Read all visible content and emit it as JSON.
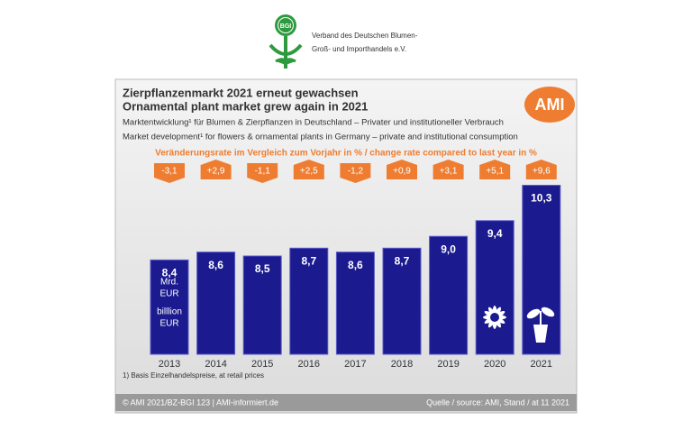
{
  "logo": {
    "badge": "BGI",
    "org_line1": "Verband des Deutschen Blumen-",
    "org_line2": "Groß- und Importhandels e.V."
  },
  "chart_data": {
    "type": "bar",
    "title": "Zierpflanzenmarkt 2021 erneut gewachsen",
    "title_en": "Ornamental plant market grew again in 2021",
    "subtitle": "Marktentwicklung¹ für Blumen & Zierpflanzen in Deutschland – Privater und institutioneller Verbrauch",
    "subtitle_en": "Market development¹ for flowers & ornamental plants in Germany – private and institutional consumption",
    "brand": "AMI",
    "change_heading": "Veränderungsrate im Vergleich zum Vorjahr in % / change rate compared to last year in %",
    "categories": [
      "2013",
      "2014",
      "2015",
      "2016",
      "2017",
      "2018",
      "2019",
      "2020",
      "2021"
    ],
    "values": [
      8.4,
      8.6,
      8.5,
      8.7,
      8.6,
      8.7,
      9.0,
      9.4,
      10.3
    ],
    "value_labels": [
      "8,4",
      "8,6",
      "8,5",
      "8,7",
      "8,6",
      "8,7",
      "9,0",
      "9,4",
      "10,3"
    ],
    "color": "#1b1b8f",
    "unit_labels": [
      "Mrd.",
      "EUR",
      "billlion",
      "EUR"
    ],
    "ylim": [
      6,
      11
    ],
    "change_rate": {
      "values": [
        -3.1,
        2.9,
        -1.1,
        2.5,
        -1.2,
        0.9,
        3.1,
        5.1,
        9.6
      ],
      "value_labels": [
        "-3,1",
        "+2,9",
        "-1,1",
        "+2,5",
        "-1,2",
        "+0,9",
        "+3,1",
        "+5,1",
        "+9,6"
      ],
      "color": "#ee7d31"
    },
    "footnote": "1) Basis Einzelhandelspreise, at retail prices",
    "footer_left": "© AMI 2021/BZ-BGI 123 | AMI-informiert.de",
    "footer_right": "Quelle / source: AMI, Stand  / at 11 2021"
  }
}
